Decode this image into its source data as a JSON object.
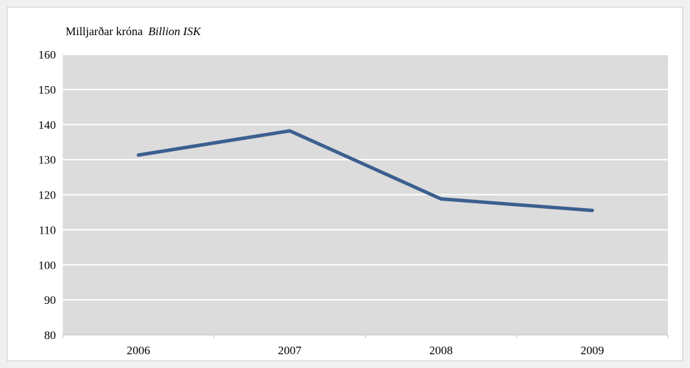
{
  "chart_data": {
    "type": "line",
    "title": "",
    "ylabel_is": "Milljarðar króna",
    "ylabel_en": "Billion ISK",
    "xlabel": "",
    "categories": [
      "2006",
      "2007",
      "2008",
      "2009"
    ],
    "series": [
      {
        "values": [
          131.3,
          138.2,
          118.8,
          115.5
        ]
      }
    ],
    "ylim": [
      80,
      160
    ],
    "yticks": [
      80,
      90,
      100,
      110,
      120,
      130,
      140,
      150,
      160
    ],
    "grid": true,
    "colors": {
      "line": "#3b5f8f",
      "plot_background": "#dcdcdc",
      "gridline": "#ffffff"
    }
  }
}
